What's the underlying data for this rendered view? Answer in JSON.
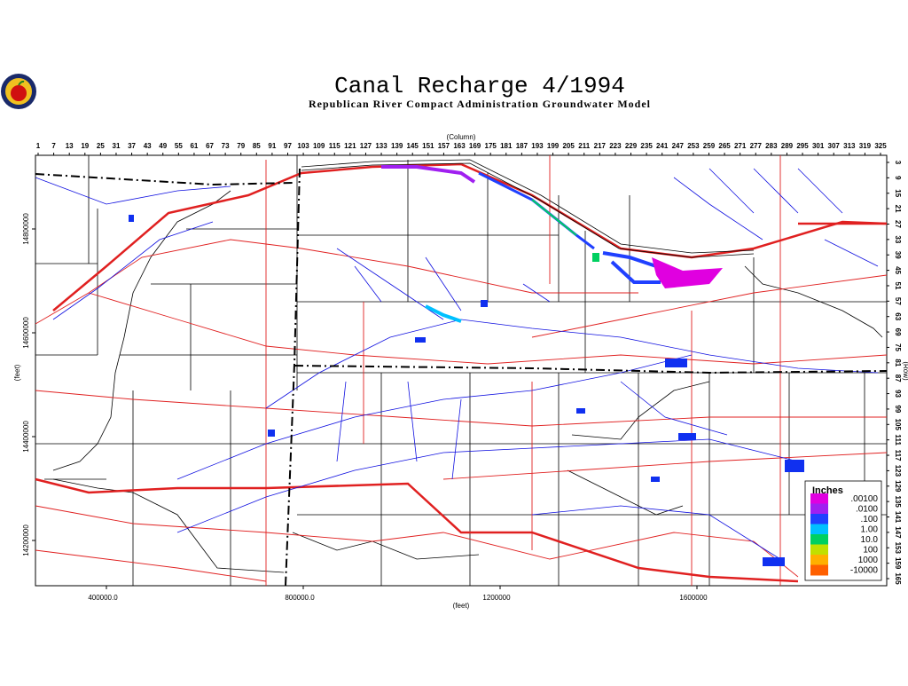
{
  "header": {
    "title": "Canal Recharge 4/1994",
    "subtitle": "Republican River Compact Administration Groundwater Model"
  },
  "map": {
    "column_label": "(Column)",
    "row_label": "(Row)",
    "x_label": "(feet)",
    "y_label": "(feet)",
    "columns": [
      1,
      7,
      13,
      19,
      25,
      31,
      37,
      43,
      49,
      55,
      61,
      67,
      73,
      79,
      85,
      91,
      97,
      103,
      109,
      115,
      121,
      127,
      133,
      139,
      145,
      151,
      157,
      163,
      169,
      175,
      181,
      187,
      193,
      199,
      205,
      211,
      217,
      223,
      229,
      235,
      241,
      247,
      253,
      259,
      265,
      271,
      277,
      283,
      289,
      295,
      301,
      307,
      313,
      319,
      325
    ],
    "rows": [
      3,
      9,
      15,
      21,
      27,
      33,
      39,
      45,
      51,
      57,
      63,
      69,
      75,
      81,
      87,
      93,
      99,
      105,
      111,
      117,
      123,
      129,
      135,
      141,
      147,
      153,
      159,
      165
    ],
    "x_ticks": [
      {
        "value": 400000,
        "label": "400000.0"
      },
      {
        "value": 800000,
        "label": "800000.0"
      },
      {
        "value": 1200000,
        "label": "1200000"
      },
      {
        "value": 1600000,
        "label": "1600000"
      }
    ],
    "y_ticks": [
      {
        "value": 14800000,
        "label": "14800000"
      },
      {
        "value": 14600000,
        "label": "14600000"
      },
      {
        "value": 14400000,
        "label": "14400000"
      },
      {
        "value": 14200000,
        "label": "14200000"
      }
    ]
  },
  "legend": {
    "title": "Inches",
    "entries": [
      {
        "label": ".00100",
        "color": "#e000e0"
      },
      {
        "label": ".0100",
        "color": "#a020f0"
      },
      {
        "label": ".100",
        "color": "#2040ff"
      },
      {
        "label": "1.00",
        "color": "#00c0ff"
      },
      {
        "label": "10.0",
        "color": "#00d060"
      },
      {
        "label": "100",
        "color": "#c0e000"
      },
      {
        "label": "1000",
        "color": "#ffb000"
      },
      {
        "label": "-10000",
        "color": "#ff6000"
      }
    ]
  }
}
